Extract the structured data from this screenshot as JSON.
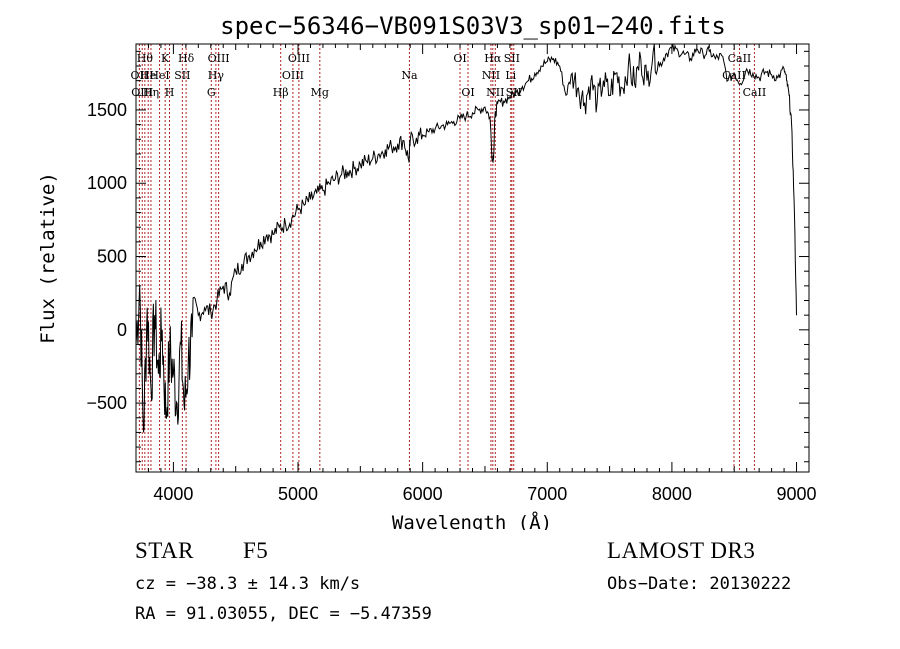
{
  "chart_data": {
    "type": "line",
    "title": "spec−56346−VB091S03V3_sp01−240.fits",
    "xlabel": "Wavelength (Å)",
    "ylabel": "Flux (relative)",
    "xlim": [
      3700,
      9100
    ],
    "ylim": [
      -970,
      1950
    ],
    "xticks": [
      4000,
      5000,
      6000,
      7000,
      8000,
      9000
    ],
    "yticks": [
      -500,
      0,
      500,
      1000,
      1500
    ],
    "series": [
      {
        "name": "flux",
        "x": [
          3700,
          3730,
          3760,
          3790,
          3820,
          3850,
          3880,
          3910,
          3940,
          3970,
          4000,
          4030,
          4060,
          4090,
          4120,
          4150,
          4200,
          4250,
          4300,
          4350,
          4400,
          4450,
          4500,
          4550,
          4600,
          4650,
          4700,
          4750,
          4800,
          4850,
          4900,
          4950,
          5000,
          5050,
          5100,
          5150,
          5200,
          5250,
          5300,
          5350,
          5400,
          5450,
          5500,
          5550,
          5600,
          5650,
          5700,
          5750,
          5800,
          5850,
          5890,
          5900,
          5950,
          6000,
          6050,
          6100,
          6150,
          6200,
          6250,
          6300,
          6350,
          6400,
          6450,
          6500,
          6540,
          6560,
          6570,
          6580,
          6600,
          6650,
          6700,
          6750,
          6800,
          6850,
          6900,
          6950,
          7000,
          7050,
          7100,
          7150,
          7200,
          7250,
          7300,
          7350,
          7400,
          7450,
          7500,
          7550,
          7600,
          7650,
          7700,
          7750,
          7800,
          7850,
          7900,
          7950,
          8000,
          8050,
          8100,
          8150,
          8200,
          8250,
          8300,
          8350,
          8400,
          8450,
          8500,
          8550,
          8600,
          8650,
          8700,
          8750,
          8800,
          8850,
          8900,
          8920,
          8940,
          8960,
          8980,
          9000
        ],
        "values": [
          -100,
          300,
          -700,
          150,
          -400,
          100,
          -300,
          0,
          -600,
          -150,
          -300,
          -500,
          -100,
          -550,
          -200,
          -50,
          100,
          150,
          120,
          200,
          300,
          250,
          400,
          450,
          500,
          550,
          600,
          650,
          650,
          700,
          720,
          760,
          820,
          850,
          890,
          930,
          950,
          1000,
          1030,
          1060,
          1080,
          1100,
          1130,
          1150,
          1170,
          1200,
          1230,
          1250,
          1270,
          1290,
          1150,
          1290,
          1310,
          1330,
          1350,
          1370,
          1390,
          1400,
          1420,
          1440,
          1460,
          1480,
          1500,
          1520,
          1450,
          1150,
          1200,
          1450,
          1540,
          1560,
          1590,
          1620,
          1660,
          1700,
          1750,
          1800,
          1830,
          1850,
          1800,
          1600,
          1750,
          1650,
          1550,
          1700,
          1550,
          1700,
          1600,
          1750,
          1650,
          1800,
          1680,
          1850,
          1700,
          1900,
          1800,
          1880,
          1920,
          1900,
          1880,
          1850,
          1920,
          1880,
          1900,
          1850,
          1870,
          1700,
          1750,
          1680,
          1780,
          1750,
          1720,
          1760,
          1740,
          1720,
          1780,
          1700,
          1600,
          1400,
          900,
          100
        ]
      }
    ],
    "lines": [
      {
        "x": 3727,
        "label": "OII",
        "row": 2
      },
      {
        "x": 3750,
        "label": "OIII",
        "row": 3
      },
      {
        "x": 3771,
        "label": "Hθ",
        "row": 1
      },
      {
        "x": 3798,
        "label": "He",
        "row": 2
      },
      {
        "x": 3820,
        "label": "Hη",
        "row": 3
      },
      {
        "x": 3889,
        "label": "HeI",
        "row": 2
      },
      {
        "x": 3934,
        "label": "K",
        "row": 1
      },
      {
        "x": 3969,
        "label": "H",
        "row": 3
      },
      {
        "x": 4072,
        "label": "SII",
        "row": 2
      },
      {
        "x": 4102,
        "label": "Hδ",
        "row": 1
      },
      {
        "x": 4304,
        "label": "G",
        "row": 3
      },
      {
        "x": 4341,
        "label": "Hγ",
        "row": 2
      },
      {
        "x": 4363,
        "label": "OIII",
        "row": 1
      },
      {
        "x": 4861,
        "label": "Hβ",
        "row": 3
      },
      {
        "x": 4959,
        "label": "OIII",
        "row": 2
      },
      {
        "x": 5007,
        "label": "OIII",
        "row": 1
      },
      {
        "x": 5175,
        "label": "Mg",
        "row": 3
      },
      {
        "x": 5894,
        "label": "Na",
        "row": 2
      },
      {
        "x": 6300,
        "label": "OI",
        "row": 1
      },
      {
        "x": 6364,
        "label": "OI",
        "row": 3
      },
      {
        "x": 6548,
        "label": "NII",
        "row": 2
      },
      {
        "x": 6563,
        "label": "Hα",
        "row": 1
      },
      {
        "x": 6583,
        "label": "NII",
        "row": 3
      },
      {
        "x": 6707,
        "label": "Li",
        "row": 2
      },
      {
        "x": 6716,
        "label": "SII",
        "row": 1
      },
      {
        "x": 6731,
        "label": "SII",
        "row": 3
      },
      {
        "x": 8498,
        "label": "CaII",
        "row": 2
      },
      {
        "x": 8542,
        "label": "CaII",
        "row": 1
      },
      {
        "x": 8662,
        "label": "CaII",
        "row": 3
      }
    ]
  },
  "info": {
    "class": "STAR",
    "subclass": "F5",
    "survey": "LAMOST DR3",
    "cz": "cz = −38.3 ± 14.3 km/s",
    "obs_date": "Obs−Date: 20130222",
    "radec": "RA =  91.03055, DEC =  −5.47359"
  }
}
